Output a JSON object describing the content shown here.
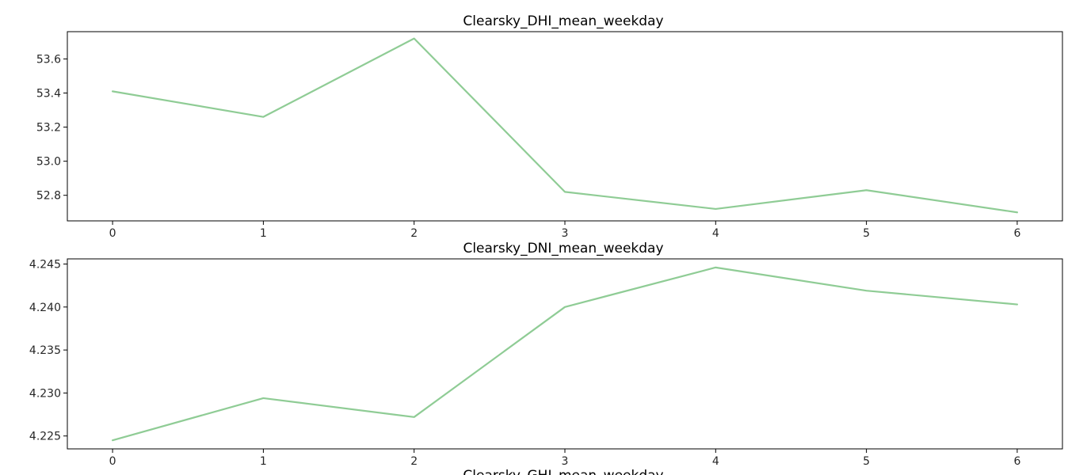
{
  "chart_data": [
    {
      "type": "line",
      "title": "Clearsky_DHI_mean_weekday",
      "x": [
        0,
        1,
        2,
        3,
        4,
        5,
        6
      ],
      "values": [
        53.41,
        53.26,
        53.72,
        52.82,
        52.72,
        52.83,
        52.7
      ],
      "xlim": [
        -0.3,
        6.3
      ],
      "ylim": [
        52.65,
        53.76
      ],
      "yticks": [
        52.8,
        53.0,
        53.2,
        53.4,
        53.6
      ],
      "ytick_labels": [
        "52.8",
        "53.0",
        "53.2",
        "53.4",
        "53.6"
      ],
      "xticks": [
        0,
        1,
        2,
        3,
        4,
        5,
        6
      ],
      "xtick_labels": [
        "0",
        "1",
        "2",
        "3",
        "4",
        "5",
        "6"
      ],
      "color": "#8fcc95",
      "grid": false
    },
    {
      "type": "line",
      "title": "Clearsky_DNI_mean_weekday",
      "x": [
        0,
        1,
        2,
        3,
        4,
        5,
        6
      ],
      "values": [
        4.2245,
        4.2294,
        4.2272,
        4.24,
        4.2446,
        4.2419,
        4.2403
      ],
      "xlim": [
        -0.3,
        6.3
      ],
      "ylim": [
        4.2235,
        4.2456
      ],
      "yticks": [
        4.225,
        4.23,
        4.235,
        4.24,
        4.245
      ],
      "ytick_labels": [
        "4.225",
        "4.230",
        "4.235",
        "4.240",
        "4.245"
      ],
      "xticks": [
        0,
        1,
        2,
        3,
        4,
        5,
        6
      ],
      "xtick_labels": [
        "0",
        "1",
        "2",
        "3",
        "4",
        "5",
        "6"
      ],
      "color": "#8fcc95",
      "grid": false
    },
    {
      "type": "line",
      "title": "Clearsky_GHI_mean_weekday"
    }
  ]
}
